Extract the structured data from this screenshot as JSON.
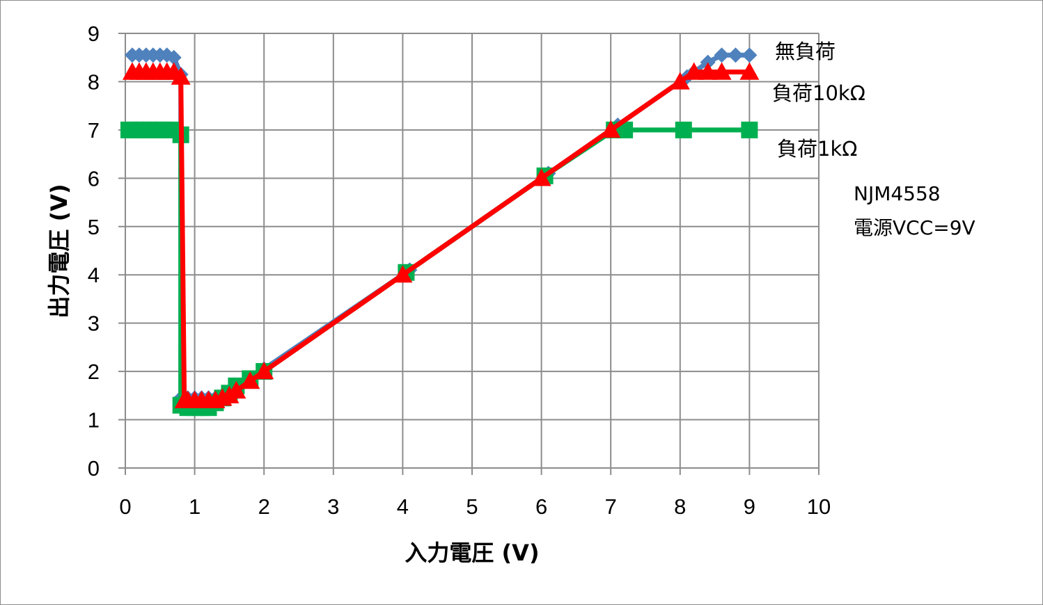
{
  "chart_data": {
    "type": "line",
    "title": "",
    "xlabel": "入力電圧 (V)",
    "ylabel": "出力電圧 (V)",
    "xlim": [
      0,
      10
    ],
    "ylim": [
      0,
      9
    ],
    "x_ticks": [
      "0",
      "1",
      "2",
      "3",
      "4",
      "5",
      "6",
      "7",
      "8",
      "9",
      "10"
    ],
    "y_ticks": [
      "0",
      "1",
      "2",
      "3",
      "4",
      "5",
      "6",
      "7",
      "8",
      "9"
    ],
    "grid": true,
    "legend_placement": "right",
    "annotations": [
      "NJM4558",
      "電源VCC=9V"
    ],
    "series": [
      {
        "name": "無負荷",
        "color": "#4f81bd",
        "marker": "diamond",
        "x": [
          0.1,
          0.2,
          0.3,
          0.4,
          0.5,
          0.6,
          0.7,
          0.8,
          0.8,
          0.9,
          1.0,
          1.1,
          1.2,
          1.3,
          1.4,
          1.5,
          1.6,
          1.8,
          2.0,
          4.1,
          6.1,
          7.1,
          8.1,
          8.2,
          8.4,
          8.6,
          8.8,
          9.0
        ],
        "y": [
          8.55,
          8.55,
          8.55,
          8.55,
          8.55,
          8.55,
          8.5,
          8.15,
          1.45,
          1.45,
          1.45,
          1.45,
          1.45,
          1.45,
          1.5,
          1.55,
          1.65,
          1.85,
          2.05,
          4.1,
          6.1,
          7.1,
          8.1,
          8.2,
          8.4,
          8.55,
          8.55,
          8.55
        ]
      },
      {
        "name": "負荷10kΩ",
        "color": "#ff0000",
        "marker": "triangle",
        "x": [
          0.1,
          0.2,
          0.3,
          0.4,
          0.5,
          0.6,
          0.7,
          0.8,
          0.85,
          0.9,
          1.0,
          1.1,
          1.2,
          1.3,
          1.4,
          1.5,
          1.6,
          1.8,
          2.0,
          4.0,
          6.0,
          7.0,
          8.0,
          8.2,
          8.4,
          8.6,
          9.0
        ],
        "y": [
          8.2,
          8.2,
          8.2,
          8.2,
          8.2,
          8.2,
          8.2,
          8.1,
          1.4,
          1.4,
          1.4,
          1.4,
          1.4,
          1.4,
          1.45,
          1.5,
          1.6,
          1.8,
          2.0,
          4.0,
          6.0,
          7.0,
          8.0,
          8.2,
          8.2,
          8.2,
          8.2
        ]
      },
      {
        "name": "負荷1kΩ",
        "color": "#00b050",
        "marker": "square",
        "x": [
          0.05,
          0.15,
          0.25,
          0.35,
          0.45,
          0.55,
          0.7,
          0.8,
          0.8,
          0.9,
          1.0,
          1.1,
          1.2,
          1.3,
          1.4,
          1.5,
          1.6,
          1.8,
          2.0,
          4.05,
          6.05,
          7.05,
          7.2,
          8.05,
          9.0
        ],
        "y": [
          7.0,
          7.0,
          7.0,
          7.0,
          7.0,
          7.0,
          7.0,
          6.9,
          1.3,
          1.25,
          1.25,
          1.25,
          1.25,
          1.35,
          1.45,
          1.55,
          1.7,
          1.85,
          2.0,
          4.05,
          6.05,
          7.0,
          7.0,
          7.0,
          7.0
        ]
      }
    ]
  }
}
